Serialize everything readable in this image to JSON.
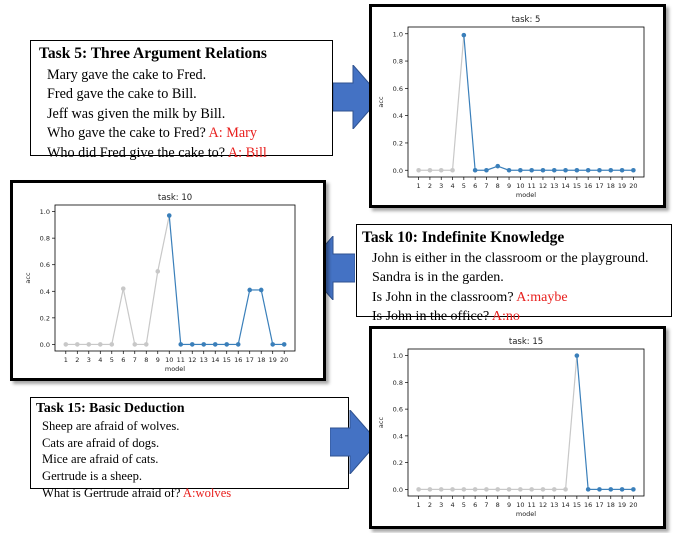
{
  "tasks": [
    {
      "title": "Task 5: Three Argument Relations",
      "lines": [
        {
          "text": "Mary gave the cake to Fred.",
          "answer": ""
        },
        {
          "text": "Fred gave the cake to Bill.",
          "answer": ""
        },
        {
          "text": "Jeff was given the milk by Bill.",
          "answer": ""
        },
        {
          "text": "Who gave the cake to Fred? ",
          "answer": "A: Mary"
        },
        {
          "text": "Who did Fred give the cake to? ",
          "answer": "A: Bill"
        }
      ]
    },
    {
      "title": "Task 10: Indefinite Knowledge",
      "lines": [
        {
          "text": "John is either in the classroom or the playground.",
          "answer": ""
        },
        {
          "text": "Sandra is in the garden.",
          "answer": ""
        },
        {
          "text": "Is John in the classroom? ",
          "answer": "A:maybe"
        },
        {
          "text": "Is John in the office? ",
          "answer": "A:no"
        }
      ]
    },
    {
      "title": "Task 15: Basic Deduction",
      "lines": [
        {
          "text": "Sheep are afraid of wolves.",
          "answer": ""
        },
        {
          "text": "Cats are afraid of dogs.",
          "answer": ""
        },
        {
          "text": "Mice are afraid of cats.",
          "answer": ""
        },
        {
          "text": "Gertrude is a sheep.",
          "answer": ""
        },
        {
          "text": "What is Gertrude afraid of? ",
          "answer": "A:wolves"
        }
      ]
    }
  ],
  "colors": {
    "gray": "#c8c8c8",
    "blue": "#3a7fba",
    "arrow": "#4472c4",
    "answer": "#e8201e"
  },
  "chart_data": [
    {
      "type": "line",
      "title": "task: 5",
      "xlabel": "model",
      "ylabel": "acc",
      "x": [
        1,
        2,
        3,
        4,
        5,
        6,
        7,
        8,
        9,
        10,
        11,
        12,
        13,
        14,
        15,
        16,
        17,
        18,
        19,
        20
      ],
      "y": [
        0,
        0,
        0,
        0,
        0.99,
        0,
        0,
        0.03,
        0,
        0,
        0,
        0,
        0,
        0,
        0,
        0,
        0,
        0,
        0,
        0
      ],
      "highlight_index": 4,
      "ylim": [
        0,
        1.0
      ],
      "yticks": [
        0.0,
        0.2,
        0.4,
        0.6,
        0.8,
        1.0
      ],
      "ytick_labels": [
        "0.0",
        "0.2",
        "0.4",
        "0.6",
        "0.8",
        "1.0"
      ]
    },
    {
      "type": "line",
      "title": "task: 10",
      "xlabel": "model",
      "ylabel": "acc",
      "x": [
        1,
        2,
        3,
        4,
        5,
        6,
        7,
        8,
        9,
        10,
        11,
        12,
        13,
        14,
        15,
        16,
        17,
        18,
        19,
        20
      ],
      "y": [
        0,
        0,
        0,
        0,
        0,
        0.42,
        0,
        0,
        0.55,
        0.97,
        0,
        0,
        0,
        0,
        0,
        0,
        0.41,
        0.41,
        0,
        0
      ],
      "highlight_index": 9,
      "ylim": [
        0,
        1.0
      ],
      "yticks": [
        0.0,
        0.2,
        0.4,
        0.6,
        0.8,
        1.0
      ],
      "ytick_labels": [
        "0.0",
        "0.2",
        "0.4",
        "0.6",
        "0.8",
        "1.0"
      ]
    },
    {
      "type": "line",
      "title": "task: 15",
      "xlabel": "model",
      "ylabel": "acc",
      "x": [
        1,
        2,
        3,
        4,
        5,
        6,
        7,
        8,
        9,
        10,
        11,
        12,
        13,
        14,
        15,
        16,
        17,
        18,
        19,
        20
      ],
      "y": [
        0,
        0,
        0,
        0,
        0,
        0,
        0,
        0,
        0,
        0,
        0,
        0,
        0,
        0,
        1.0,
        0,
        0,
        0,
        0,
        0
      ],
      "highlight_index": 14,
      "ylim": [
        0,
        1.0
      ],
      "yticks": [
        0.0,
        0.2,
        0.4,
        0.6,
        0.8,
        1.0
      ],
      "ytick_labels": [
        "0.0",
        "0.2",
        "0.4",
        "0.6",
        "0.8",
        "1.0"
      ]
    }
  ]
}
